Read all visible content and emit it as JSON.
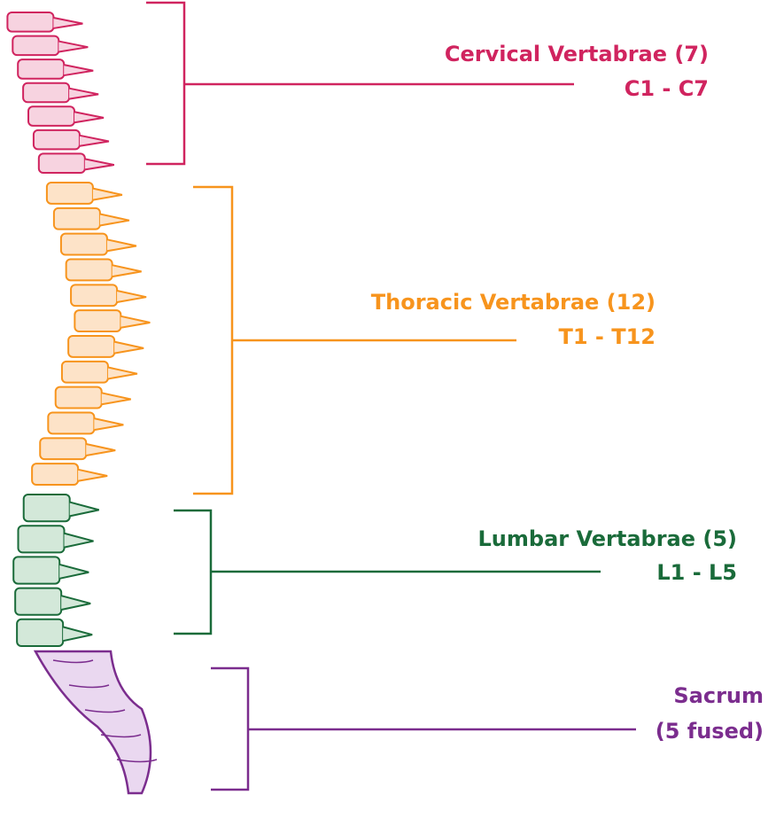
{
  "regions": [
    {
      "name": "Cervical Vertabrae (7)",
      "range": "C1 - C7"
    },
    {
      "name": "Thoracic Vertabrae (12)",
      "range": "T1 - T12"
    },
    {
      "name": "Lumbar Vertabrae (5)",
      "range": "L1 - L5"
    },
    {
      "name": "Sacrum",
      "range": "(5 fused)"
    }
  ]
}
